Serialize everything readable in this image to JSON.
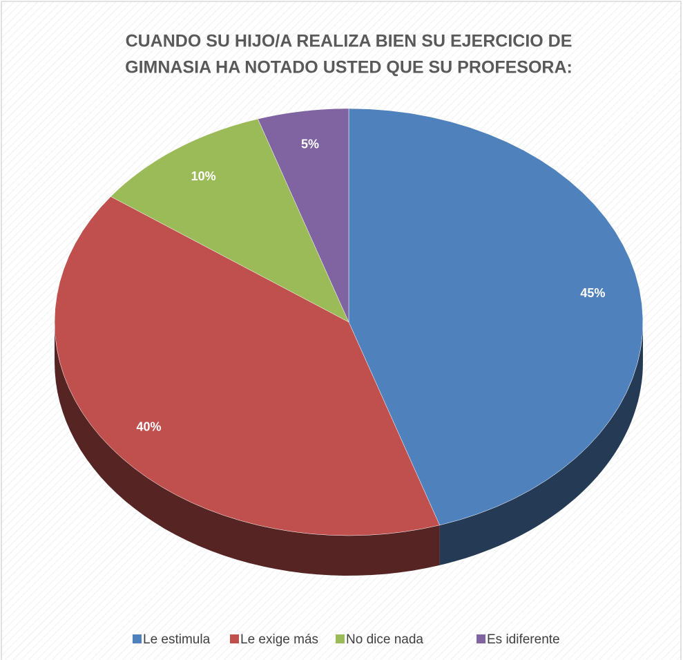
{
  "chart_data": {
    "type": "pie",
    "title": [
      "CUANDO SU HIJO/A REALIZA BIEN SU EJERCICIO DE",
      "GIMNASIA HA NOTADO USTED QUE SU PROFESORA:"
    ],
    "categories": [
      "Le estimula",
      "Le exige más",
      "No dice nada",
      "Es idiferente"
    ],
    "values": [
      45,
      40,
      10,
      5
    ],
    "value_labels": [
      "45%",
      "40%",
      "10%",
      "5%"
    ],
    "colors": [
      "#4f81bd",
      "#c0504d",
      "#9bbb59",
      "#8064a2"
    ],
    "legend": "bottom"
  }
}
